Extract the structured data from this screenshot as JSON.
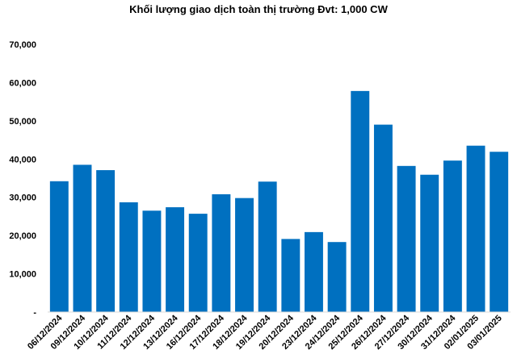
{
  "chart_data": {
    "type": "bar",
    "title": "Khối lượng giao dịch toàn thị trường Đvt: 1,000 CW",
    "xlabel": "",
    "ylabel": "",
    "ylim": [
      0,
      70000
    ],
    "yticks": [
      0,
      10000,
      20000,
      30000,
      40000,
      50000,
      60000,
      70000
    ],
    "ytick_labels": [
      "-",
      "10,000",
      "20,000",
      "30,000",
      "40,000",
      "50,000",
      "60,000",
      "70,000"
    ],
    "grid": false,
    "legend": "none",
    "bar_color": "#0070C0",
    "categories": [
      "06/12/2024",
      "09/12/2024",
      "10/12/2024",
      "11/12/2024",
      "12/12/2024",
      "13/12/2024",
      "16/12/2024",
      "17/12/2024",
      "18/12/2024",
      "19/12/2024",
      "20/12/2024",
      "23/12/2024",
      "24/12/2024",
      "25/12/2024",
      "26/12/2024",
      "27/12/2024",
      "30/12/2024",
      "31/12/2024",
      "02/01/2025",
      "03/01/2025"
    ],
    "values": [
      34200,
      38500,
      37100,
      28700,
      26500,
      27400,
      25700,
      30800,
      29800,
      34100,
      19100,
      20900,
      18300,
      57800,
      49000,
      38200,
      35900,
      39600,
      43500,
      41900
    ]
  }
}
